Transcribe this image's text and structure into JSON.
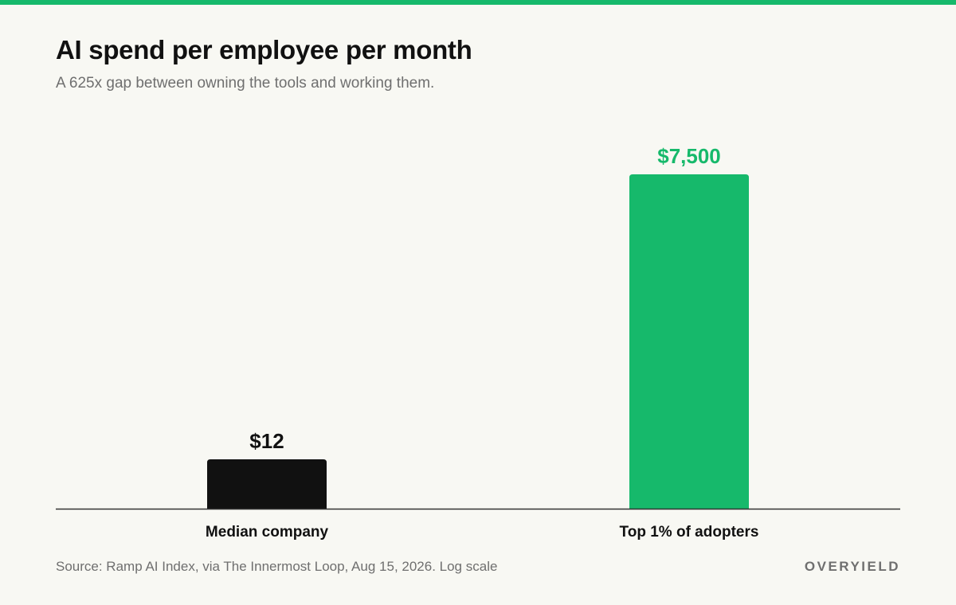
{
  "header": {
    "title": "AI spend per employee per month",
    "subtitle": "A 625x gap between owning the tools and working them."
  },
  "footer": {
    "source": "Source: Ramp AI Index, via The Innermost Loop, Aug 15, 2026. Log scale",
    "brand": "OVERYIELD"
  },
  "colors": {
    "accent": "#16b96b",
    "dark_bar": "#111111",
    "background": "#f8f8f3",
    "axis": "#333333",
    "muted_text": "#6f6f6f"
  },
  "chart_data": {
    "type": "bar",
    "title": "AI spend per employee per month",
    "subtitle": "A 625x gap between owning the tools and working them.",
    "scale": "log",
    "categories": [
      "Median company",
      "Top 1% of adopters"
    ],
    "values": [
      12,
      7500
    ],
    "value_labels": [
      "$12",
      "$7,500"
    ],
    "bar_colors": [
      "#111111",
      "#16b96b"
    ],
    "xlabel": "",
    "ylabel": "",
    "grid": false,
    "legend": "none"
  }
}
